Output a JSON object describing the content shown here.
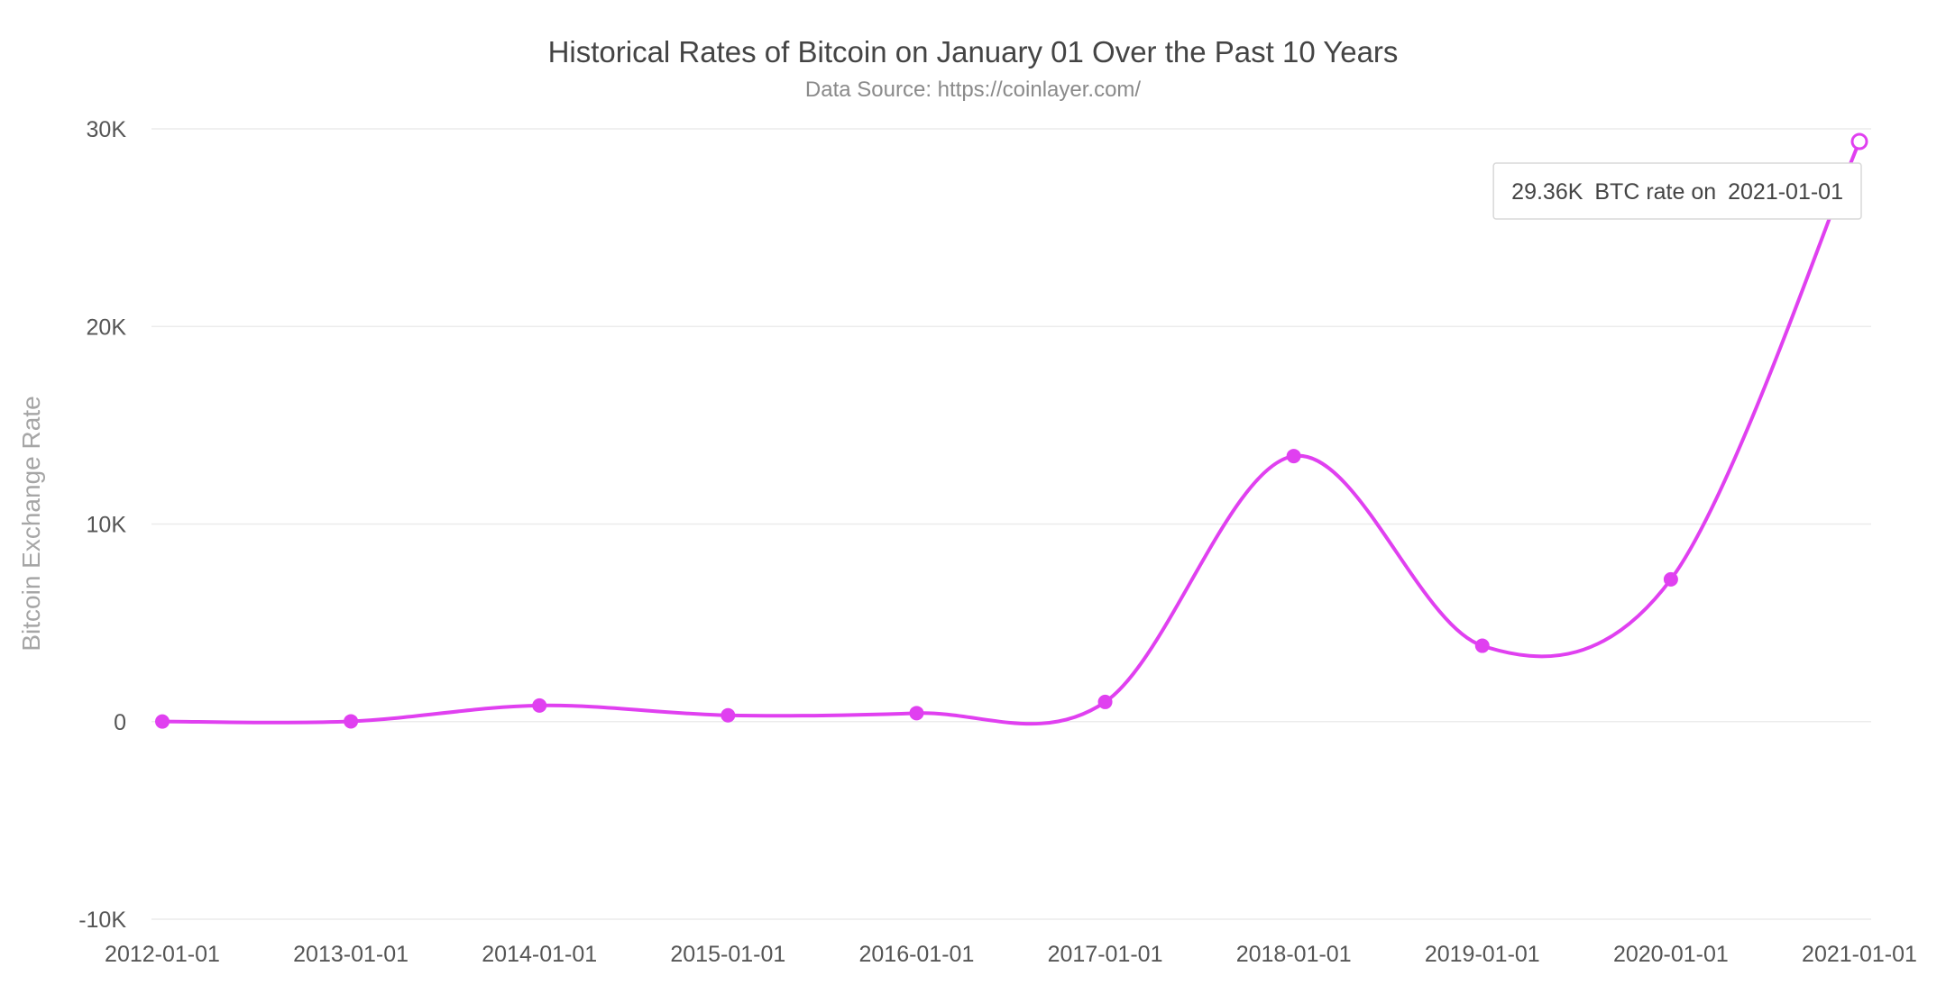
{
  "chart_data": {
    "type": "line",
    "title": "Historical Rates of Bitcoin on January 01 Over the Past 10 Years",
    "subtitle": "Data Source: https://coinlayer.com/",
    "xlabel": "",
    "ylabel": "Bitcoin Exchange Rate",
    "ylim": [
      -10000,
      30000
    ],
    "y_ticks": [
      {
        "value": 30000,
        "label": "30K"
      },
      {
        "value": 20000,
        "label": "20K"
      },
      {
        "value": 10000,
        "label": "10K"
      },
      {
        "value": 0,
        "label": "0"
      },
      {
        "value": -10000,
        "label": "-10K"
      }
    ],
    "categories": [
      "2012-01-01",
      "2013-01-01",
      "2014-01-01",
      "2015-01-01",
      "2016-01-01",
      "2017-01-01",
      "2018-01-01",
      "2019-01-01",
      "2020-01-01",
      "2021-01-01"
    ],
    "series": [
      {
        "values": [
          5,
          13,
          815,
          320,
          430,
          995,
          13440,
          3840,
          7200,
          29360
        ],
        "color": "#e040f0"
      }
    ],
    "grid": true,
    "legend": "none",
    "tooltip": {
      "value_label": "29.36K",
      "text_middle": "BTC rate on",
      "date_label": "2021-01-01",
      "point_index": 9
    }
  }
}
